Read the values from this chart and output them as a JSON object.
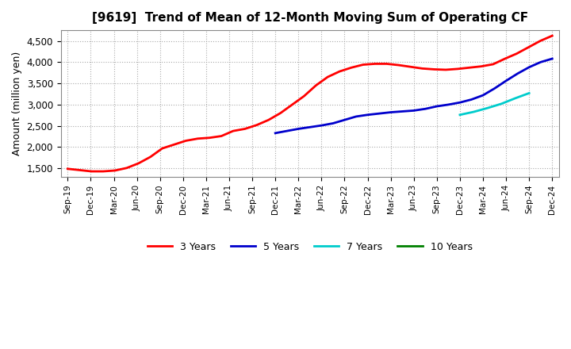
{
  "title": "[9619]  Trend of Mean of 12-Month Moving Sum of Operating CF",
  "ylabel": "Amount (million yen)",
  "background_color": "#ffffff",
  "grid_color": "#aaaaaa",
  "ylim": [
    1300,
    4750
  ],
  "yticks": [
    1500,
    2000,
    2500,
    3000,
    3500,
    4000,
    4500
  ],
  "series": {
    "3 Years": {
      "color": "#ff0000",
      "x_start_label": "Sep-19",
      "x_end_label": "Dec-24",
      "data": [
        1490,
        1460,
        1430,
        1430,
        1450,
        1510,
        1620,
        1770,
        1970,
        2060,
        2150,
        2200,
        2220,
        2260,
        2380,
        2430,
        2520,
        2640,
        2800,
        3000,
        3200,
        3450,
        3650,
        3780,
        3870,
        3940,
        3960,
        3960,
        3930,
        3890,
        3850,
        3830,
        3820,
        3840,
        3870,
        3900,
        3950,
        4080,
        4200,
        4350,
        4500,
        4620
      ]
    },
    "5 Years": {
      "color": "#0000cc",
      "x_start_label": "Dec-21",
      "x_end_label": "Dec-24",
      "data": [
        2330,
        2380,
        2430,
        2470,
        2510,
        2560,
        2640,
        2720,
        2760,
        2790,
        2820,
        2840,
        2860,
        2900,
        2960,
        3000,
        3050,
        3120,
        3220,
        3380,
        3560,
        3730,
        3880,
        4000,
        4080
      ]
    },
    "7 Years": {
      "color": "#00cccc",
      "x_start_label": "Dec-23",
      "x_end_label": "Sep-24",
      "data": [
        2760,
        2830,
        2920,
        3020,
        3150,
        3270
      ]
    },
    "10 Years": {
      "color": "#008000",
      "x_start_label": null,
      "x_end_label": null,
      "data": []
    }
  },
  "x_labels": [
    "Sep-19",
    "Dec-19",
    "Mar-20",
    "Jun-20",
    "Sep-20",
    "Dec-20",
    "Mar-21",
    "Jun-21",
    "Sep-21",
    "Dec-21",
    "Mar-22",
    "Jun-22",
    "Sep-22",
    "Dec-22",
    "Mar-23",
    "Jun-23",
    "Sep-23",
    "Dec-23",
    "Mar-24",
    "Jun-24",
    "Sep-24",
    "Dec-24"
  ]
}
